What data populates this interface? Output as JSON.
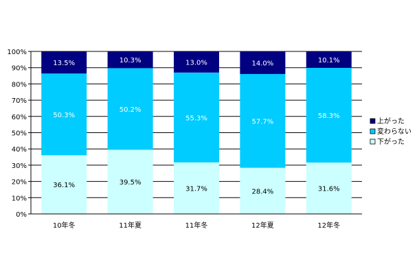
{
  "chart_data": {
    "type": "bar",
    "stacked": true,
    "percent": true,
    "categories": [
      "10年冬",
      "11年夏",
      "11年冬",
      "12年夏",
      "12年冬"
    ],
    "series": [
      {
        "name": "下がった",
        "color": "#ccffff",
        "label_color": "#000000",
        "values": [
          36.1,
          39.5,
          31.7,
          28.4,
          31.6
        ],
        "labels": [
          "36.1%",
          "39.5%",
          "31.7%",
          "28.4%",
          "31.6%"
        ]
      },
      {
        "name": "変わらない",
        "color": "#00ccff",
        "label_color": "#ffffff",
        "values": [
          50.3,
          50.2,
          55.3,
          57.7,
          58.3
        ],
        "labels": [
          "50.3%",
          "50.2%",
          "55.3%",
          "57.7%",
          "58.3%"
        ]
      },
      {
        "name": "上がった",
        "color": "#000080",
        "label_color": "#ffffff",
        "values": [
          13.5,
          10.3,
          13.0,
          14.0,
          10.1
        ],
        "labels": [
          "13.5%",
          "10.3%",
          "13.0%",
          "14.0%",
          "10.1%"
        ]
      }
    ],
    "legend_order": [
      "上がった",
      "変わらない",
      "下がった"
    ],
    "legend_position": "right",
    "y_ticks": [
      "0%",
      "10%",
      "20%",
      "30%",
      "40%",
      "50%",
      "60%",
      "70%",
      "80%",
      "90%",
      "100%"
    ],
    "ylim": [
      0,
      100
    ],
    "grid": true,
    "title": "",
    "xlabel": "",
    "ylabel": ""
  }
}
